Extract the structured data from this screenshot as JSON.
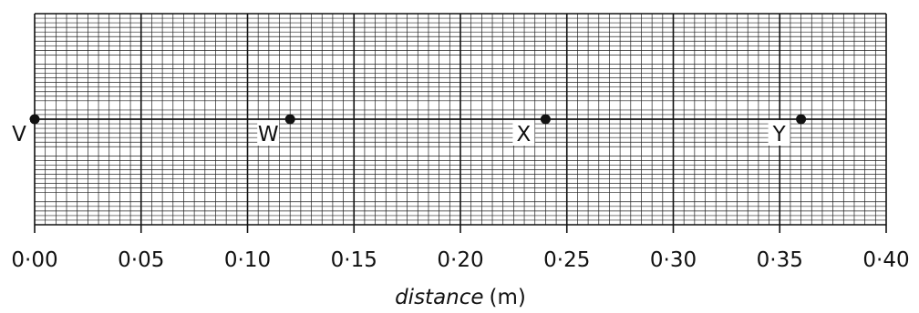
{
  "chart_data": {
    "type": "scatter",
    "x_label_italic": "distance",
    "x_label_unit": "(m)",
    "xlim": [
      0,
      0.4
    ],
    "x_ticks": [
      {
        "value": 0.0,
        "label": "0·00"
      },
      {
        "value": 0.05,
        "label": "0·05"
      },
      {
        "value": 0.1,
        "label": "0·10"
      },
      {
        "value": 0.15,
        "label": "0·15"
      },
      {
        "value": 0.2,
        "label": "0·20"
      },
      {
        "value": 0.25,
        "label": "0·25"
      },
      {
        "value": 0.3,
        "label": "0·30"
      },
      {
        "value": 0.35,
        "label": "0·35"
      },
      {
        "value": 0.4,
        "label": "0·40"
      }
    ],
    "points": [
      {
        "label": "V",
        "x": 0.0
      },
      {
        "label": "W",
        "x": 0.12
      },
      {
        "label": "X",
        "x": 0.24
      },
      {
        "label": "Y",
        "x": 0.36
      }
    ],
    "grid": true
  }
}
